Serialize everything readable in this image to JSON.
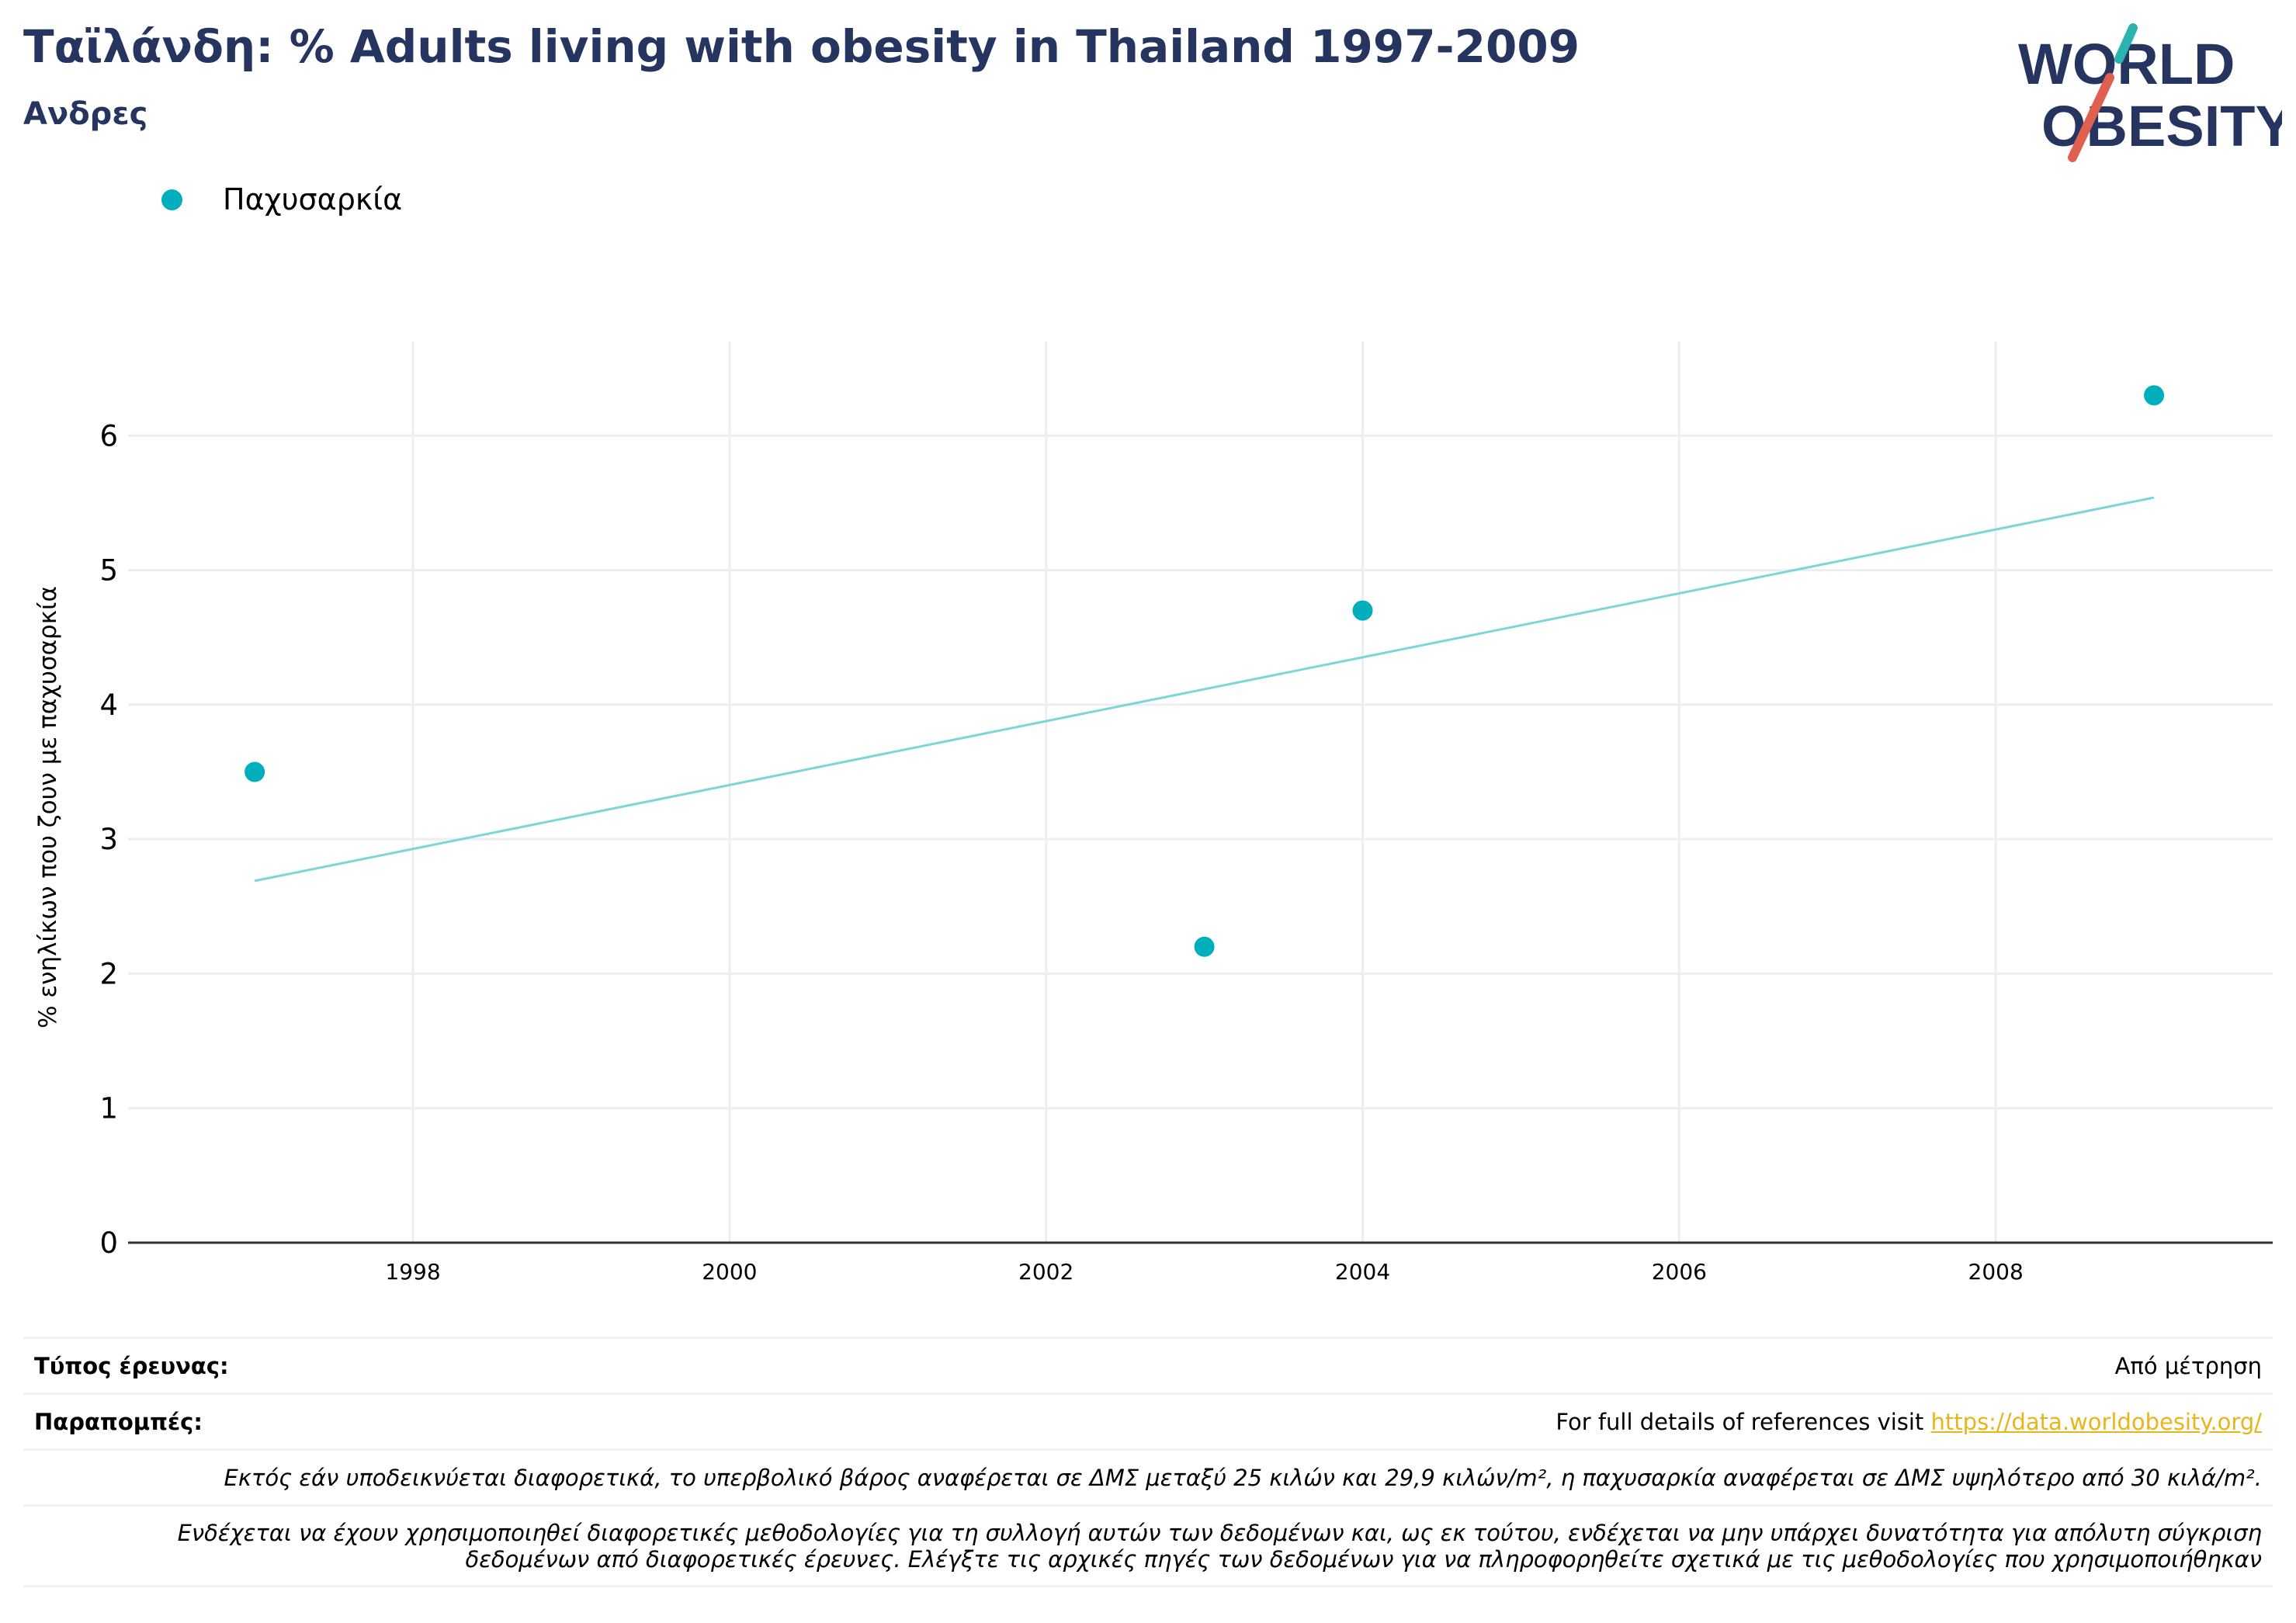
{
  "title": "Ταϊλάνδη: % Adults living with obesity in Thailand 1997-2009",
  "subtitle": "Ανδρες",
  "logo": {
    "line1": "WORLD",
    "line2": "OBESITY"
  },
  "colors": {
    "title": "#253560",
    "series": "#00aebc",
    "trend": "#7dd5dc",
    "grid": "#eceef2",
    "link": "#e8b51a",
    "logo_slash_teal": "#2bb3b1",
    "logo_slash_red": "#e0604f"
  },
  "legend": {
    "label": "Παχυσαρκία",
    "placement": "top-left"
  },
  "chart_data": {
    "type": "scatter",
    "series": [
      {
        "name": "Παχυσαρκία",
        "x": [
          1997,
          2003,
          2004,
          2009
        ],
        "y": [
          3.5,
          2.2,
          4.7,
          6.3
        ]
      }
    ],
    "trendline": {
      "x": [
        1997,
        2009
      ],
      "y": [
        2.69,
        5.54
      ]
    },
    "ylabel": "% ενηλίκων που ζουν με παχυσαρκία",
    "xlabel": "",
    "xticks": [
      1998,
      2000,
      2002,
      2004,
      2006,
      2008
    ],
    "yticks": [
      0,
      1,
      2,
      3,
      4,
      5,
      6
    ],
    "xlim": [
      1996.2,
      2009.75
    ],
    "ylim": [
      0,
      6.7
    ],
    "grid": true
  },
  "info": {
    "survey_type_label": "Τύπος έρευνας:",
    "survey_type_value": "Από μέτρηση",
    "references_label": "Παραπομπές:",
    "references_text": "For full details of references visit ",
    "references_link": "https://data.worldobesity.org/",
    "note1": "Εκτός εάν υποδεικνύεται διαφορετικά, το υπερβολικό βάρος αναφέρεται σε ΔΜΣ μεταξύ 25 κιλών και 29,9 κιλών/m², η παχυσαρκία αναφέρεται σε ΔΜΣ υψηλότερο από 30 κιλά/m².",
    "note2_line1": "Ενδέχεται να έχουν χρησιμοποιηθεί διαφορετικές μεθοδολογίες για τη συλλογή αυτών των δεδομένων και, ως εκ τούτου, ενδέχεται να μην υπάρχει δυνατότητα για απόλυτη σύγκριση",
    "note2_line2": "δεδομένων από διαφορετικές έρευνες. Ελέγξτε τις αρχικές πηγές των δεδομένων για να πληροφορηθείτε σχετικά με τις μεθοδολογίες που χρησιμοποιήθηκαν"
  }
}
